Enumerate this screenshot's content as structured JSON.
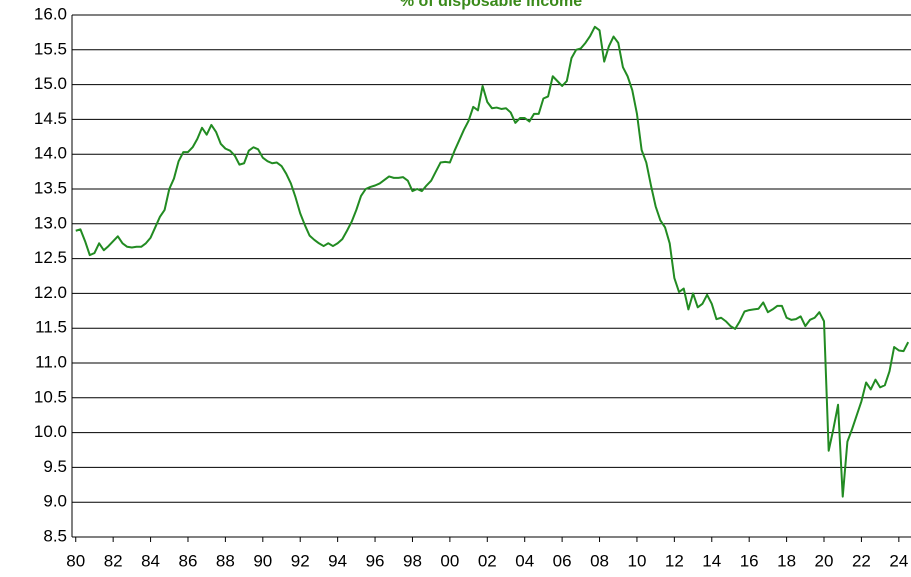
{
  "chart_data": {
    "type": "line",
    "title": "% of disposable income",
    "x": [
      1980,
      1980.25,
      1980.5,
      1980.75,
      1981,
      1981.25,
      1981.5,
      1981.75,
      1982,
      1982.25,
      1982.5,
      1982.75,
      1983,
      1983.25,
      1983.5,
      1983.75,
      1984,
      1984.25,
      1984.5,
      1984.75,
      1985,
      1985.25,
      1985.5,
      1985.75,
      1986,
      1986.25,
      1986.5,
      1986.75,
      1987,
      1987.25,
      1987.5,
      1987.75,
      1988,
      1988.25,
      1988.5,
      1988.75,
      1989,
      1989.25,
      1989.5,
      1989.75,
      1990,
      1990.25,
      1990.5,
      1990.75,
      1991,
      1991.25,
      1991.5,
      1991.75,
      1992,
      1992.25,
      1992.5,
      1992.75,
      1993,
      1993.25,
      1993.5,
      1993.75,
      1994,
      1994.25,
      1994.5,
      1994.75,
      1995,
      1995.25,
      1995.5,
      1995.75,
      1996,
      1996.25,
      1996.5,
      1996.75,
      1997,
      1997.25,
      1997.5,
      1997.75,
      1998,
      1998.25,
      1998.5,
      1998.75,
      1999,
      1999.25,
      1999.5,
      1999.75,
      2000,
      2000.25,
      2000.5,
      2000.75,
      2001,
      2001.25,
      2001.5,
      2001.75,
      2002,
      2002.25,
      2002.5,
      2002.75,
      2003,
      2003.25,
      2003.5,
      2003.75,
      2004,
      2004.25,
      2004.5,
      2004.75,
      2005,
      2005.25,
      2005.5,
      2005.75,
      2006,
      2006.25,
      2006.5,
      2006.75,
      2007,
      2007.25,
      2007.5,
      2007.75,
      2008,
      2008.25,
      2008.5,
      2008.75,
      2009,
      2009.25,
      2009.5,
      2009.75,
      2010,
      2010.25,
      2010.5,
      2010.75,
      2011,
      2011.25,
      2011.5,
      2011.75,
      2012,
      2012.25,
      2012.5,
      2012.75,
      2013,
      2013.25,
      2013.5,
      2013.75,
      2014,
      2014.25,
      2014.5,
      2014.75,
      2015,
      2015.25,
      2015.5,
      2015.75,
      2016,
      2016.25,
      2016.5,
      2016.75,
      2017,
      2017.25,
      2017.5,
      2017.75,
      2018,
      2018.25,
      2018.5,
      2018.75,
      2019,
      2019.25,
      2019.5,
      2019.75,
      2020,
      2020.25,
      2020.5,
      2020.75,
      2021,
      2021.25,
      2021.5,
      2021.75,
      2022,
      2022.25,
      2022.5,
      2022.75,
      2023,
      2023.25,
      2023.5,
      2023.75,
      2024,
      2024.25,
      2024.5
    ],
    "series": [
      {
        "color": "#228b22",
        "values": [
          12.9,
          12.92,
          12.75,
          12.55,
          12.58,
          12.72,
          12.62,
          12.68,
          12.75,
          12.82,
          12.72,
          12.67,
          12.66,
          12.67,
          12.67,
          12.72,
          12.8,
          12.95,
          13.1,
          13.2,
          13.5,
          13.65,
          13.9,
          14.03,
          14.03,
          14.1,
          14.22,
          14.38,
          14.28,
          14.42,
          14.32,
          14.15,
          14.08,
          14.05,
          13.98,
          13.85,
          13.87,
          14.05,
          14.1,
          14.07,
          13.95,
          13.9,
          13.87,
          13.88,
          13.83,
          13.72,
          13.58,
          13.38,
          13.15,
          12.98,
          12.83,
          12.77,
          12.72,
          12.68,
          12.72,
          12.68,
          12.72,
          12.78,
          12.9,
          13.03,
          13.2,
          13.4,
          13.5,
          13.53,
          13.55,
          13.58,
          13.63,
          13.68,
          13.66,
          13.66,
          13.67,
          13.62,
          13.47,
          13.5,
          13.47,
          13.55,
          13.62,
          13.75,
          13.88,
          13.89,
          13.88,
          14.05,
          14.2,
          14.35,
          14.48,
          14.68,
          14.63,
          14.98,
          14.75,
          14.66,
          14.67,
          14.65,
          14.66,
          14.6,
          14.45,
          14.52,
          14.52,
          14.47,
          14.58,
          14.58,
          14.8,
          14.83,
          15.12,
          15.05,
          14.98,
          15.05,
          15.38,
          15.5,
          15.52,
          15.6,
          15.7,
          15.83,
          15.78,
          15.33,
          15.55,
          15.69,
          15.6,
          15.25,
          15.12,
          14.92,
          14.58,
          14.06,
          13.88,
          13.55,
          13.25,
          13.05,
          12.95,
          12.72,
          12.22,
          12.02,
          12.07,
          11.77,
          12.0,
          11.8,
          11.85,
          11.98,
          11.85,
          11.63,
          11.65,
          11.6,
          11.53,
          11.49,
          11.6,
          11.74,
          11.76,
          11.77,
          11.78,
          11.87,
          11.73,
          11.77,
          11.82,
          11.82,
          11.65,
          11.62,
          11.63,
          11.67,
          11.53,
          11.62,
          11.65,
          11.73,
          11.6,
          9.74,
          10.05,
          10.4,
          9.08,
          9.87,
          10.05,
          10.25,
          10.45,
          10.72,
          10.62,
          10.76,
          10.65,
          10.68,
          10.88,
          11.23,
          11.18,
          11.17,
          11.3
        ]
      }
    ],
    "xlim": [
      1979.8,
      2024.65
    ],
    "xticks": [
      {
        "value": 1980,
        "label": "80"
      },
      {
        "value": 1982,
        "label": "82"
      },
      {
        "value": 1984,
        "label": "84"
      },
      {
        "value": 1986,
        "label": "86"
      },
      {
        "value": 1988,
        "label": "88"
      },
      {
        "value": 1990,
        "label": "90"
      },
      {
        "value": 1992,
        "label": "92"
      },
      {
        "value": 1994,
        "label": "94"
      },
      {
        "value": 1996,
        "label": "96"
      },
      {
        "value": 1998,
        "label": "98"
      },
      {
        "value": 2000,
        "label": "00"
      },
      {
        "value": 2002,
        "label": "02"
      },
      {
        "value": 2004,
        "label": "04"
      },
      {
        "value": 2006,
        "label": "06"
      },
      {
        "value": 2008,
        "label": "08"
      },
      {
        "value": 2010,
        "label": "10"
      },
      {
        "value": 2012,
        "label": "12"
      },
      {
        "value": 2014,
        "label": "14"
      },
      {
        "value": 2016,
        "label": "16"
      },
      {
        "value": 2018,
        "label": "18"
      },
      {
        "value": 2020,
        "label": "20"
      },
      {
        "value": 2022,
        "label": "22"
      },
      {
        "value": 2024,
        "label": "24"
      }
    ],
    "ylim": [
      8.5,
      16
    ],
    "yticks": [
      8.5,
      {
        "value": 9,
        "label": "9.0"
      },
      9.5,
      {
        "value": 10,
        "label": "10.0"
      },
      10.5,
      {
        "value": 11,
        "label": "11.0"
      },
      11.5,
      {
        "value": 12,
        "label": "12.0"
      },
      12.5,
      {
        "value": 13,
        "label": "13.0"
      },
      13.5,
      {
        "value": 14,
        "label": "14.0"
      },
      14.5,
      {
        "value": 15,
        "label": "15.0"
      },
      15.5,
      {
        "value": 16,
        "label": "16.0"
      }
    ],
    "grid": true
  }
}
